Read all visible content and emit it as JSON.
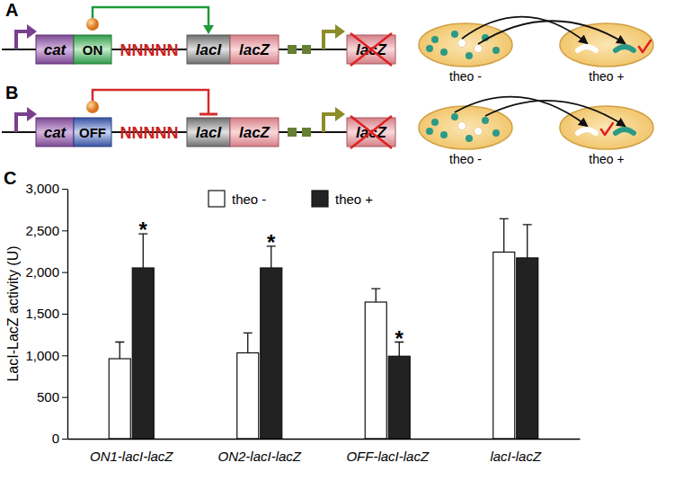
{
  "chart_data": {
    "type": "bar",
    "categories": [
      "ON1-lacI-lacZ",
      "ON2-lacI-lacZ",
      "OFF-lacI-lacZ",
      "lacI-lacZ"
    ],
    "series": [
      {
        "name": "theo -",
        "color": "#ffffff",
        "values": [
          960,
          1030,
          1640,
          2240
        ],
        "errors": [
          200,
          240,
          160,
          400
        ]
      },
      {
        "name": "theo +",
        "color": "#222222",
        "values": [
          2050,
          2050,
          990,
          2170
        ],
        "errors": [
          410,
          260,
          170,
          400
        ]
      }
    ],
    "ylabel": "LacI-LacZ activity (U)",
    "ylim": [
      0,
      3000
    ],
    "yticks": [
      0,
      500,
      {
        "value": 1000,
        "label": "1,000"
      },
      {
        "value": 1500,
        "label": "1,500"
      },
      {
        "value": 2000,
        "label": "2,000"
      },
      {
        "value": 2500,
        "label": "2,500"
      },
      {
        "value": 3000,
        "label": "3,000"
      }
    ],
    "annotations": [
      {
        "text": "*",
        "category": 0,
        "series": 1
      },
      {
        "text": "*",
        "category": 1,
        "series": 1
      },
      {
        "text": "*",
        "category": 2,
        "series": 1
      }
    ],
    "legend": "top",
    "grid": false
  },
  "figure": {
    "panels": [
      {
        "label": "A",
        "promoter_gene": "cat",
        "switch": "ON",
        "linker": "NNNNN",
        "fusion": [
          "lacI",
          "lacZ"
        ],
        "reporter": "lacZ",
        "plates": [
          "theo -",
          "theo +"
        ]
      },
      {
        "label": "B",
        "promoter_gene": "cat",
        "switch": "OFF",
        "linker": "NNNNN",
        "fusion": [
          "lacI",
          "lacZ"
        ],
        "reporter": "lacZ",
        "plates": [
          "theo -",
          "theo +"
        ]
      }
    ],
    "chart_label": "C"
  }
}
